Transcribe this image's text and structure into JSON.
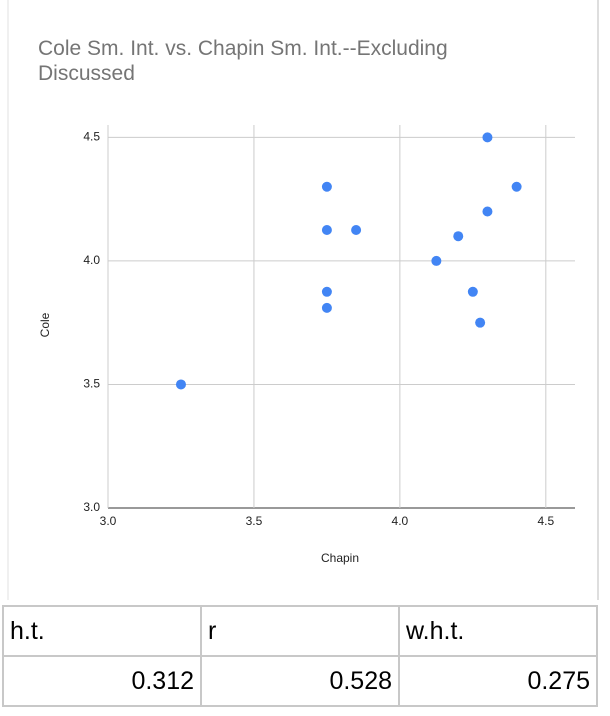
{
  "chart_data": {
    "type": "scatter",
    "title": "Cole Sm. Int. vs. Chapin Sm. Int.--Excluding Discussed",
    "x_label": "Chapin",
    "y_label": "Cole",
    "color": "#4285f4",
    "grid": true,
    "x": [
      3.25,
      3.75,
      3.75,
      3.85,
      3.75,
      3.75,
      4.125,
      4.2,
      4.3,
      4.4,
      4.3,
      4.25,
      4.275
    ],
    "values": [
      3.5,
      4.3,
      4.125,
      4.125,
      3.875,
      3.81,
      4.0,
      4.1,
      4.5,
      4.3,
      4.2,
      3.875,
      3.75
    ],
    "xlim": [
      3,
      4.6
    ],
    "ylim": [
      3,
      4.55
    ],
    "xticks": [
      {
        "value": 3,
        "label": "3.0"
      },
      {
        "value": 3.5,
        "label": "3.5"
      },
      {
        "value": 4,
        "label": "4.0"
      },
      {
        "value": 4.5,
        "label": "4.5"
      }
    ],
    "yticks": [
      {
        "value": 3,
        "label": "3.0"
      },
      {
        "value": 3.5,
        "label": "3.5"
      },
      {
        "value": 4,
        "label": "4.0"
      },
      {
        "value": 4.5,
        "label": "4.5"
      }
    ]
  },
  "table": {
    "header": [
      "h.t.",
      "r",
      "w.h.t."
    ],
    "rows": [
      [
        0.312,
        0.528,
        0.275
      ]
    ]
  }
}
